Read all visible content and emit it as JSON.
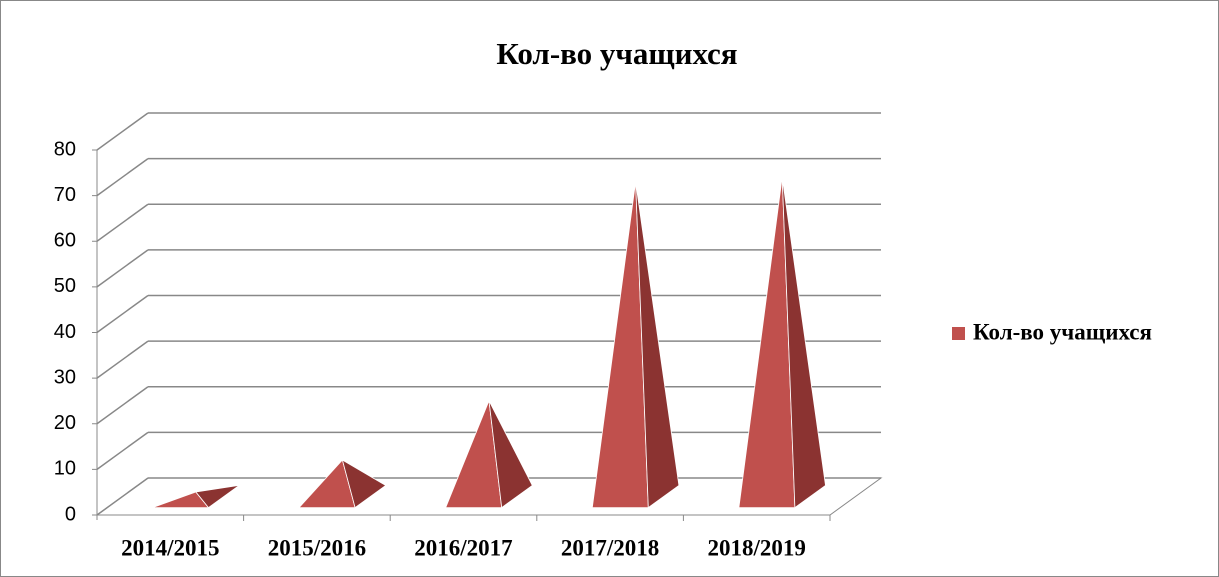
{
  "chart_data": {
    "type": "pyramid3d",
    "title": "Кол-во учащихся",
    "categories": [
      "2014/2015",
      "2015/2016",
      "2016/2017",
      "2017/2018",
      "2018/2019"
    ],
    "series": [
      {
        "name": "Кол-во учащихся",
        "color": "#c0504d",
        "values": [
          1,
          8,
          21,
          69,
          70
        ]
      }
    ],
    "ylim": [
      0,
      80
    ],
    "yticks": [
      0,
      10,
      20,
      30,
      40,
      50,
      60,
      70,
      80
    ],
    "grid": true,
    "legend": "right"
  }
}
